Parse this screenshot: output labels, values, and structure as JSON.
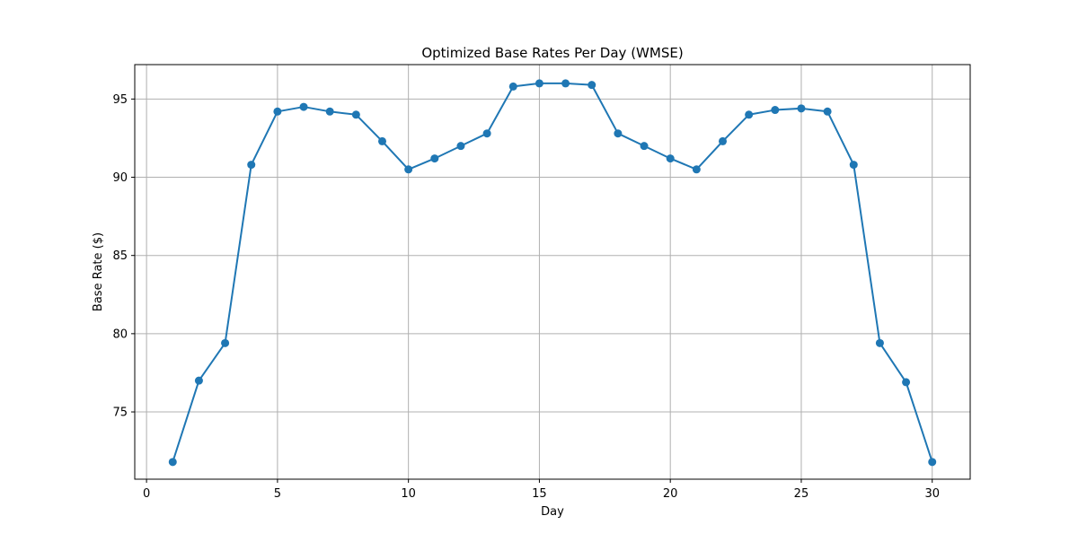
{
  "chart_data": {
    "type": "line",
    "title": "Optimized Base Rates Per Day (WMSE)",
    "xlabel": "Day",
    "ylabel": "Base Rate ($)",
    "xlim": [
      -0.45,
      31.45
    ],
    "ylim": [
      70.7,
      97.2
    ],
    "xticks": [
      0,
      5,
      10,
      15,
      20,
      25,
      30
    ],
    "yticks": [
      75,
      80,
      85,
      90,
      95
    ],
    "grid": true,
    "series": [
      {
        "color": "#1f77b4",
        "marker": "circle",
        "x": [
          1,
          2,
          3,
          4,
          5,
          6,
          7,
          8,
          9,
          10,
          11,
          12,
          13,
          14,
          15,
          16,
          17,
          18,
          19,
          20,
          21,
          22,
          23,
          24,
          25,
          26,
          27,
          28,
          29,
          30
        ],
        "y": [
          71.8,
          77.0,
          79.4,
          90.8,
          94.2,
          94.5,
          94.2,
          94.0,
          92.3,
          90.5,
          91.2,
          92.0,
          92.8,
          95.8,
          96.0,
          96.0,
          95.9,
          92.8,
          92.0,
          91.2,
          90.5,
          92.3,
          94.0,
          94.3,
          94.4,
          94.2,
          90.8,
          79.4,
          76.9,
          71.8
        ]
      }
    ]
  }
}
